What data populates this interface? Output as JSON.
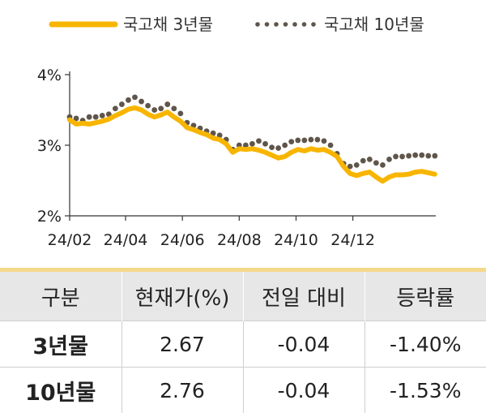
{
  "colors": {
    "series_3y": "#f7b500",
    "series_10y": "#5f554a",
    "axis": "#333333",
    "table_header_bg": "#e7e7e7",
    "accent_rule": "#f4d98a"
  },
  "legend": [
    {
      "name": "국고채 3년물",
      "style": "solid-line"
    },
    {
      "name": "국고채 10년물",
      "style": "dotted"
    }
  ],
  "chart_data": {
    "type": "line",
    "title": "",
    "xlabel": "",
    "ylabel": "",
    "ylim": [
      2.0,
      4.0
    ],
    "yticks": [
      2,
      3,
      4
    ],
    "ytick_labels": [
      "2%",
      "3%",
      "4%"
    ],
    "xlim": [
      "2024-02-01",
      "2025-02-28"
    ],
    "xticks": [
      "2024-02-01",
      "2024-04-01",
      "2024-06-01",
      "2024-08-01",
      "2024-10-01",
      "2024-12-01"
    ],
    "xtick_labels": [
      "24/02",
      "24/04",
      "24/06",
      "24/08",
      "24/10",
      "24/12"
    ],
    "grid": false,
    "legend_position": "top",
    "series": [
      {
        "name": "국고채 3년물",
        "points": [
          [
            "2024-02-01",
            3.36
          ],
          [
            "2024-02-08",
            3.3
          ],
          [
            "2024-02-15",
            3.31
          ],
          [
            "2024-02-22",
            3.3
          ],
          [
            "2024-02-29",
            3.32
          ],
          [
            "2024-03-07",
            3.34
          ],
          [
            "2024-03-14",
            3.37
          ],
          [
            "2024-03-21",
            3.42
          ],
          [
            "2024-03-28",
            3.46
          ],
          [
            "2024-04-04",
            3.51
          ],
          [
            "2024-04-11",
            3.53
          ],
          [
            "2024-04-18",
            3.5
          ],
          [
            "2024-04-25",
            3.44
          ],
          [
            "2024-05-02",
            3.4
          ],
          [
            "2024-05-09",
            3.43
          ],
          [
            "2024-05-16",
            3.47
          ],
          [
            "2024-05-23",
            3.4
          ],
          [
            "2024-05-30",
            3.34
          ],
          [
            "2024-06-06",
            3.25
          ],
          [
            "2024-06-13",
            3.22
          ],
          [
            "2024-06-20",
            3.18
          ],
          [
            "2024-06-27",
            3.15
          ],
          [
            "2024-07-04",
            3.1
          ],
          [
            "2024-07-11",
            3.08
          ],
          [
            "2024-07-18",
            3.02
          ],
          [
            "2024-07-25",
            2.9
          ],
          [
            "2024-08-01",
            2.95
          ],
          [
            "2024-08-08",
            2.94
          ],
          [
            "2024-08-15",
            2.95
          ],
          [
            "2024-08-22",
            2.93
          ],
          [
            "2024-08-29",
            2.9
          ],
          [
            "2024-09-05",
            2.86
          ],
          [
            "2024-09-12",
            2.82
          ],
          [
            "2024-09-19",
            2.84
          ],
          [
            "2024-09-26",
            2.9
          ],
          [
            "2024-10-03",
            2.94
          ],
          [
            "2024-10-10",
            2.92
          ],
          [
            "2024-10-17",
            2.95
          ],
          [
            "2024-10-24",
            2.93
          ],
          [
            "2024-10-31",
            2.94
          ],
          [
            "2024-11-07",
            2.9
          ],
          [
            "2024-11-14",
            2.84
          ],
          [
            "2024-11-21",
            2.7
          ],
          [
            "2024-11-28",
            2.6
          ],
          [
            "2024-12-05",
            2.57
          ],
          [
            "2024-12-12",
            2.6
          ],
          [
            "2024-12-19",
            2.62
          ],
          [
            "2024-12-26",
            2.55
          ],
          [
            "2025-01-02",
            2.49
          ],
          [
            "2025-01-09",
            2.55
          ],
          [
            "2025-01-16",
            2.58
          ],
          [
            "2025-01-23",
            2.58
          ],
          [
            "2025-01-30",
            2.59
          ],
          [
            "2025-02-06",
            2.62
          ],
          [
            "2025-02-13",
            2.63
          ],
          [
            "2025-02-20",
            2.61
          ],
          [
            "2025-02-27",
            2.59
          ]
        ]
      },
      {
        "name": "국고채 10년물",
        "points": [
          [
            "2024-02-01",
            3.4
          ],
          [
            "2024-02-08",
            3.38
          ],
          [
            "2024-02-15",
            3.35
          ],
          [
            "2024-02-22",
            3.4
          ],
          [
            "2024-02-29",
            3.4
          ],
          [
            "2024-03-07",
            3.42
          ],
          [
            "2024-03-14",
            3.44
          ],
          [
            "2024-03-21",
            3.52
          ],
          [
            "2024-03-28",
            3.58
          ],
          [
            "2024-04-04",
            3.64
          ],
          [
            "2024-04-11",
            3.68
          ],
          [
            "2024-04-18",
            3.62
          ],
          [
            "2024-04-25",
            3.56
          ],
          [
            "2024-05-02",
            3.5
          ],
          [
            "2024-05-09",
            3.52
          ],
          [
            "2024-05-16",
            3.58
          ],
          [
            "2024-05-23",
            3.52
          ],
          [
            "2024-05-30",
            3.45
          ],
          [
            "2024-06-06",
            3.32
          ],
          [
            "2024-06-13",
            3.28
          ],
          [
            "2024-06-20",
            3.24
          ],
          [
            "2024-06-27",
            3.2
          ],
          [
            "2024-07-04",
            3.17
          ],
          [
            "2024-07-11",
            3.14
          ],
          [
            "2024-07-18",
            3.08
          ],
          [
            "2024-07-25",
            2.94
          ],
          [
            "2024-08-01",
            3.0
          ],
          [
            "2024-08-08",
            3.0
          ],
          [
            "2024-08-15",
            3.02
          ],
          [
            "2024-08-22",
            3.06
          ],
          [
            "2024-08-29",
            3.02
          ],
          [
            "2024-09-05",
            2.97
          ],
          [
            "2024-09-12",
            2.96
          ],
          [
            "2024-09-19",
            3.0
          ],
          [
            "2024-09-26",
            3.05
          ],
          [
            "2024-10-03",
            3.07
          ],
          [
            "2024-10-10",
            3.07
          ],
          [
            "2024-10-17",
            3.08
          ],
          [
            "2024-10-24",
            3.08
          ],
          [
            "2024-10-31",
            3.06
          ],
          [
            "2024-11-07",
            3.0
          ],
          [
            "2024-11-14",
            2.88
          ],
          [
            "2024-11-21",
            2.74
          ],
          [
            "2024-11-28",
            2.7
          ],
          [
            "2024-12-05",
            2.72
          ],
          [
            "2024-12-12",
            2.78
          ],
          [
            "2024-12-19",
            2.8
          ],
          [
            "2024-12-26",
            2.75
          ],
          [
            "2025-01-02",
            2.72
          ],
          [
            "2025-01-09",
            2.8
          ],
          [
            "2025-01-16",
            2.84
          ],
          [
            "2025-01-23",
            2.84
          ],
          [
            "2025-01-30",
            2.85
          ],
          [
            "2025-02-06",
            2.86
          ],
          [
            "2025-02-13",
            2.86
          ],
          [
            "2025-02-20",
            2.85
          ],
          [
            "2025-02-27",
            2.85
          ]
        ]
      }
    ]
  },
  "table": {
    "headers": [
      "구분",
      "현재가(%)",
      "전일 대비",
      "등락률"
    ],
    "rows": [
      [
        "3년물",
        "2.67",
        "-0.04",
        "-1.40%"
      ],
      [
        "10년물",
        "2.76",
        "-0.04",
        "-1.53%"
      ]
    ]
  }
}
